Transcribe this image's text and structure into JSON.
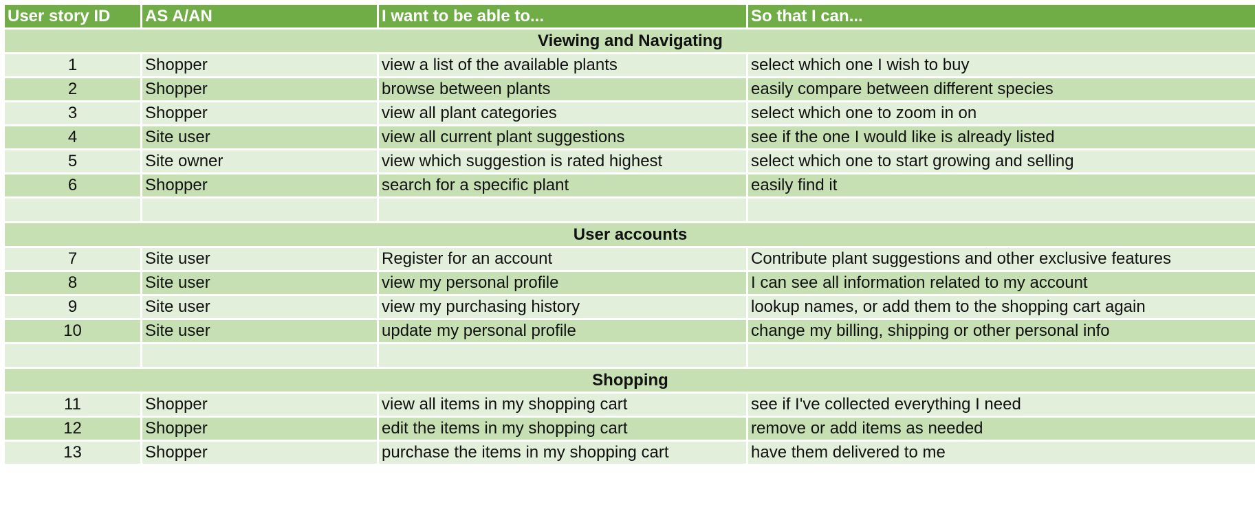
{
  "header": {
    "col1": "User story ID",
    "col2": "AS A/AN",
    "col3": "I want to be able to...",
    "col4": "So that I can..."
  },
  "sections": [
    {
      "title": "Viewing and Navigating",
      "rows": [
        {
          "id": "1",
          "role": "Shopper",
          "want": "view a list of the available plants",
          "so_that": "select which one I wish to buy"
        },
        {
          "id": "2",
          "role": "Shopper",
          "want": "browse between plants",
          "so_that": "easily compare between different species"
        },
        {
          "id": "3",
          "role": "Shopper",
          "want": "view all plant categories",
          "so_that": "select which one to zoom in on"
        },
        {
          "id": "4",
          "role": "Site user",
          "want": "view all current plant suggestions",
          "so_that": "see if the one I would like is already listed"
        },
        {
          "id": "5",
          "role": "Site owner",
          "want": "view which suggestion is rated highest",
          "so_that": "select which one to start growing and selling"
        },
        {
          "id": "6",
          "role": "Shopper",
          "want": "search for a specific plant",
          "so_that": "easily find it"
        }
      ]
    },
    {
      "title": "User accounts",
      "rows": [
        {
          "id": "7",
          "role": "Site user",
          "want": "Register for an account",
          "so_that": "Contribute plant suggestions and other exclusive features"
        },
        {
          "id": "8",
          "role": "Site user",
          "want": "view my personal profile",
          "so_that": "I can see all information related to my account"
        },
        {
          "id": "9",
          "role": "Site user",
          "want": "view my purchasing history",
          "so_that": "lookup names, or add them to the shopping cart again"
        },
        {
          "id": "10",
          "role": "Site user",
          "want": "update my personal profile",
          "so_that": "change my billing, shipping or other personal info"
        }
      ]
    },
    {
      "title": "Shopping",
      "rows": [
        {
          "id": "11",
          "role": "Shopper",
          "want": "view all items in my shopping cart",
          "so_that": "see if I've collected everything I need"
        },
        {
          "id": "12",
          "role": "Shopper",
          "want": "edit the items in my shopping cart",
          "so_that": "remove or add items as needed"
        },
        {
          "id": "13",
          "role": "Shopper",
          "want": "purchase the items in my shopping cart",
          "so_that": "have them delivered to me"
        }
      ]
    }
  ],
  "colors": {
    "header_bg": "#70ad47",
    "header_text": "#ffffff",
    "band_light": "#e2efda",
    "band_dark": "#c6e0b4",
    "grid": "#ffffff"
  }
}
